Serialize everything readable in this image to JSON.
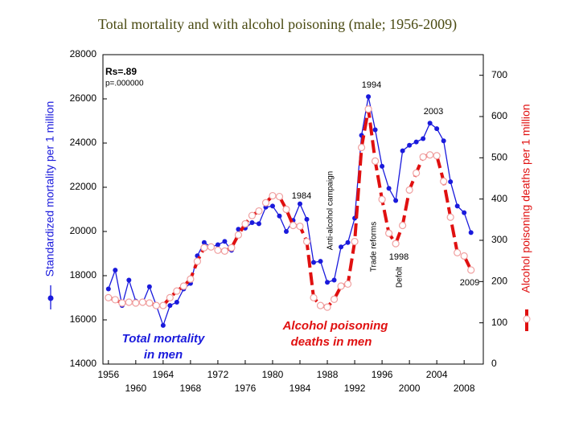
{
  "chart_data": {
    "type": "line",
    "title": "Total mortality and with alcohol poisoning (male; 1956-2009)",
    "ylabel": "Standardized mortality per 1 million",
    "y2label": "Alcohol poisoning   deaths per 1 million",
    "x": [
      1956,
      1957,
      1958,
      1959,
      1960,
      1961,
      1962,
      1963,
      1964,
      1965,
      1966,
      1967,
      1968,
      1969,
      1970,
      1971,
      1972,
      1973,
      1974,
      1975,
      1976,
      1977,
      1978,
      1979,
      1980,
      1981,
      1982,
      1983,
      1984,
      1985,
      1986,
      1987,
      1988,
      1989,
      1990,
      1991,
      1992,
      1993,
      1994,
      1995,
      1996,
      1997,
      1998,
      1999,
      2000,
      2001,
      2002,
      2003,
      2004,
      2005,
      2006,
      2007,
      2008,
      2009
    ],
    "series": [
      {
        "color": "#1a1adc",
        "values": [
          17400,
          18250,
          16650,
          17800,
          16850,
          16750,
          17500,
          16650,
          15750,
          16650,
          16800,
          17400,
          17650,
          18900,
          19500,
          19300,
          19400,
          19550,
          19150,
          20100,
          20150,
          20400,
          20350,
          21100,
          21150,
          20700,
          20000,
          20500,
          21250,
          20550,
          18600,
          18650,
          17700,
          17800,
          19300,
          19500,
          20600,
          24350,
          26100,
          24600,
          22950,
          21950,
          21400,
          23650,
          23900,
          24050,
          24200,
          24900,
          24650,
          24100,
          22250,
          21150,
          20850,
          19950
        ]
      },
      {
        "color": "#e01010",
        "axis": "y2",
        "values": [
          161,
          156,
          148,
          150,
          148,
          150,
          148,
          142,
          142,
          161,
          177,
          189,
          206,
          249,
          282,
          284,
          276,
          274,
          282,
          313,
          340,
          360,
          371,
          391,
          408,
          406,
          375,
          336,
          334,
          297,
          161,
          142,
          138,
          157,
          189,
          194,
          297,
          525,
          618,
          492,
          399,
          317,
          292,
          336,
          422,
          463,
          502,
          507,
          505,
          443,
          356,
          270,
          262,
          228
        ]
      }
    ],
    "xlim": [
      1955.2,
      2010.8
    ],
    "xticks": [
      1956,
      1960,
      1964,
      1968,
      1972,
      1976,
      1980,
      1984,
      1988,
      1992,
      1996,
      2000,
      2004,
      2008
    ],
    "ylim": [
      14000,
      28000
    ],
    "yticks": [
      14000,
      16000,
      18000,
      20000,
      22000,
      24000,
      26000,
      28000
    ],
    "y2lim": [
      0,
      750
    ],
    "y2ticks": [
      0,
      100,
      200,
      300,
      400,
      500,
      600,
      700
    ],
    "annotations": [
      "Rs=.89",
      "p=.000000",
      "1994",
      "1984",
      "2003",
      "1998",
      "2009",
      "Anti-alcohol campaign",
      "Trade reforms",
      "Defolt",
      "Total mortality",
      "in men",
      "Alcohol poisoning",
      "deaths in men"
    ]
  }
}
